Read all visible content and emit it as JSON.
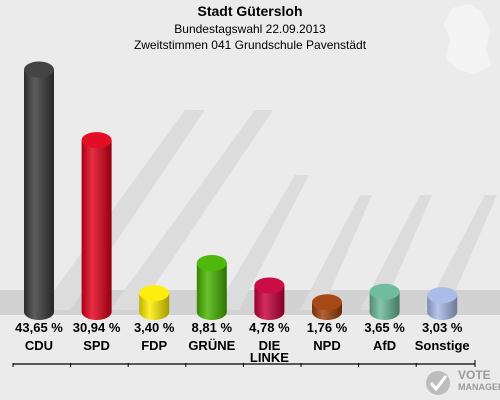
{
  "header": {
    "title": "Stadt Gütersloh",
    "subtitle1": "Bundestagswahl 22.09.2013",
    "subtitle2": "Zweitstimmen 041 Grundschule Pavenstädt"
  },
  "logo": {
    "line1": "VOTE",
    "line2": "MANAGER",
    "icon": "vote-manager-logo-icon"
  },
  "chart_data": {
    "type": "bar",
    "title": "Stadt Gütersloh",
    "subtitle": "Bundestagswahl 22.09.2013 · Zweitstimmen 041 Grundschule Pavenstädt",
    "categories": [
      "CDU",
      "SPD",
      "FDP",
      "GRÜNE",
      "DIE LINKE",
      "NPD",
      "AfD",
      "Sonstige"
    ],
    "category_lines": [
      [
        "CDU"
      ],
      [
        "SPD"
      ],
      [
        "FDP"
      ],
      [
        "GRÜNE"
      ],
      [
        "DIE",
        "LINKE"
      ],
      [
        "NPD"
      ],
      [
        "AfD"
      ],
      [
        "Sonstige"
      ]
    ],
    "values": [
      43.65,
      30.94,
      3.4,
      8.81,
      4.78,
      1.76,
      3.65,
      3.03
    ],
    "value_labels": [
      "43,65 %",
      "30,94 %",
      "3,40 %",
      "8,81 %",
      "4,78 %",
      "1,76 %",
      "3,65 %",
      "3,03 %"
    ],
    "colors": [
      "#3a3a3a",
      "#e2001a",
      "#ffed00",
      "#46b400",
      "#c8003c",
      "#a0400a",
      "#6ab89c",
      "#a8b8e8"
    ],
    "ylim": [
      0,
      45
    ],
    "grid": false,
    "legend": "none"
  }
}
